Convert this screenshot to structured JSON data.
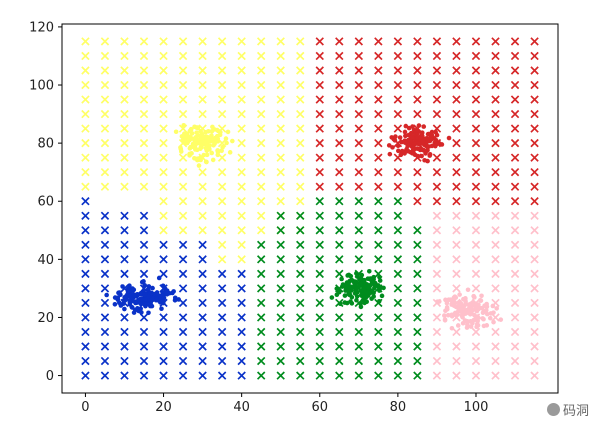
{
  "chart_data": {
    "type": "scatter",
    "title": "",
    "xlabel": "",
    "ylabel": "",
    "xlim": [
      -6,
      121
    ],
    "ylim": [
      -6,
      121
    ],
    "x_ticks": [
      0,
      20,
      40,
      60,
      80,
      100
    ],
    "y_ticks": [
      0,
      20,
      40,
      60,
      80,
      100,
      120
    ],
    "grid": false,
    "legend": "none",
    "grid_step": 5,
    "series": [
      {
        "color": "#FFFF66",
        "marker": "x",
        "region": {
          "x": [
            0,
            55
          ],
          "y": [
            65,
            115
          ]
        }
      },
      {
        "color": "#FFFF66",
        "marker": "x",
        "region": {
          "x": [
            20,
            55
          ],
          "y": [
            50,
            60
          ]
        }
      },
      {
        "color": "#FFFF66",
        "marker": "x",
        "region": {
          "x": [
            35,
            40
          ],
          "y": [
            40,
            45
          ]
        }
      },
      {
        "color": "#D62728",
        "marker": "x",
        "region": {
          "x": [
            60,
            115
          ],
          "y": [
            65,
            115
          ]
        }
      },
      {
        "color": "#D62728",
        "marker": "x",
        "region": {
          "x": [
            85,
            115
          ],
          "y": [
            60,
            60
          ]
        }
      },
      {
        "color": "#0A32C8",
        "marker": "x",
        "region": {
          "x": [
            0,
            0
          ],
          "y": [
            0,
            60
          ]
        }
      },
      {
        "color": "#0A32C8",
        "marker": "x",
        "region": {
          "x": [
            5,
            15
          ],
          "y": [
            0,
            55
          ]
        }
      },
      {
        "color": "#0A32C8",
        "marker": "x",
        "region": {
          "x": [
            20,
            30
          ],
          "y": [
            0,
            45
          ]
        }
      },
      {
        "color": "#0A32C8",
        "marker": "x",
        "region": {
          "x": [
            35,
            40
          ],
          "y": [
            0,
            35
          ]
        }
      },
      {
        "color": "#008C1E",
        "marker": "x",
        "region": {
          "x": [
            45,
            45
          ],
          "y": [
            0,
            45
          ]
        }
      },
      {
        "color": "#008C1E",
        "marker": "x",
        "region": {
          "x": [
            50,
            55
          ],
          "y": [
            0,
            55
          ]
        }
      },
      {
        "color": "#008C1E",
        "marker": "x",
        "region": {
          "x": [
            60,
            80
          ],
          "y": [
            0,
            60
          ]
        }
      },
      {
        "color": "#008C1E",
        "marker": "x",
        "region": {
          "x": [
            85,
            85
          ],
          "y": [
            0,
            50
          ]
        }
      },
      {
        "color": "#FFC0CB",
        "marker": "x",
        "region": {
          "x": [
            90,
            115
          ],
          "y": [
            0,
            55
          ]
        }
      },
      {
        "color": "#FFFF66",
        "marker": "o",
        "center": [
          30,
          80
        ],
        "spread": [
          9,
          9
        ],
        "count": 130
      },
      {
        "color": "#D62728",
        "marker": "o",
        "center": [
          85,
          80
        ],
        "spread": [
          10,
          9
        ],
        "count": 130
      },
      {
        "color": "#0A32C8",
        "marker": "o",
        "center": [
          15,
          27
        ],
        "spread": [
          12,
          8
        ],
        "count": 150
      },
      {
        "color": "#008C1E",
        "marker": "o",
        "center": [
          70,
          30
        ],
        "spread": [
          10,
          10
        ],
        "count": 130
      },
      {
        "color": "#FFC0CB",
        "marker": "o",
        "center": [
          98,
          22
        ],
        "spread": [
          11,
          10
        ],
        "count": 130
      }
    ]
  },
  "watermark": {
    "text": "码洞"
  }
}
